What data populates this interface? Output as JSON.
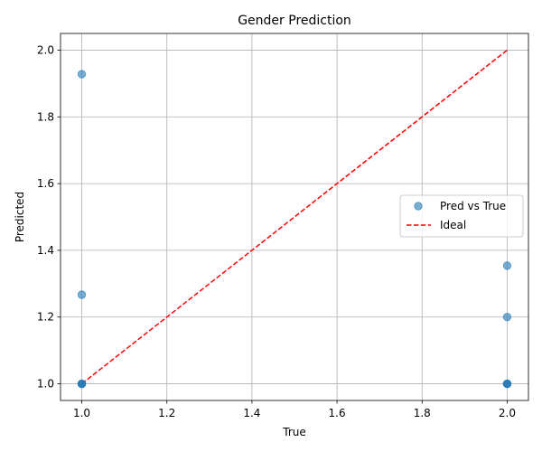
{
  "chart_data": {
    "type": "scatter",
    "title": "Gender Prediction",
    "xlabel": "True",
    "ylabel": "Predicted",
    "xlim": [
      0.95,
      2.05
    ],
    "ylim": [
      0.95,
      2.05
    ],
    "xticks": [
      "1.0",
      "1.2",
      "1.4",
      "1.6",
      "1.8",
      "2.0"
    ],
    "yticks": [
      "1.0",
      "1.2",
      "1.4",
      "1.6",
      "1.8",
      "2.0"
    ],
    "grid": true,
    "legend_position": "center-right",
    "series": [
      {
        "name": "Pred vs True",
        "kind": "scatter",
        "color": "#1f77b4",
        "points": [
          {
            "x": 1.0,
            "y": 1.928
          },
          {
            "x": 1.0,
            "y": 1.267
          },
          {
            "x": 1.0,
            "y": 1.0
          },
          {
            "x": 1.0,
            "y": 1.0
          },
          {
            "x": 1.0,
            "y": 1.0
          },
          {
            "x": 2.0,
            "y": 1.354
          },
          {
            "x": 2.0,
            "y": 1.2
          },
          {
            "x": 2.0,
            "y": 1.0
          },
          {
            "x": 2.0,
            "y": 1.0
          },
          {
            "x": 2.0,
            "y": 1.0
          }
        ]
      },
      {
        "name": "Ideal",
        "kind": "line",
        "style": "dashed",
        "color": "#ff0000",
        "points": [
          {
            "x": 1.0,
            "y": 1.0
          },
          {
            "x": 2.0,
            "y": 2.0
          }
        ]
      }
    ]
  }
}
